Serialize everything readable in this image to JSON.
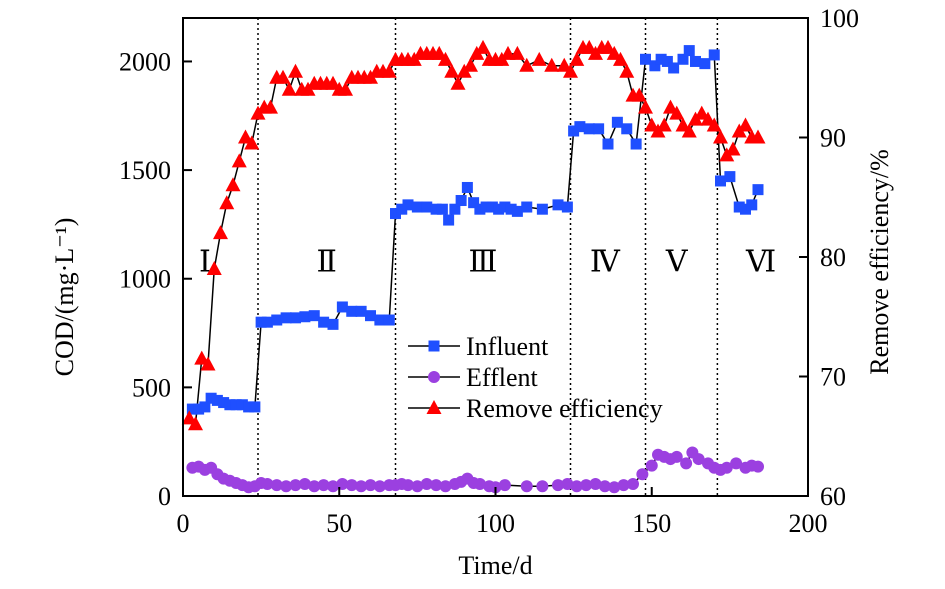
{
  "chart_data": {
    "type": "line",
    "xlabel": "Time/d",
    "ylabel": "COD/(mg·L⁻¹)",
    "y2label": "Remove efficiency/%",
    "xlim": [
      0,
      200
    ],
    "ylim": [
      0,
      2200
    ],
    "y2lim": [
      60,
      100
    ],
    "xticks": [
      "0",
      "50",
      "100",
      "150",
      "200"
    ],
    "yticks": [
      "0",
      "500",
      "1000",
      "1500",
      "2000"
    ],
    "y2ticks": [
      "60",
      "70",
      "80",
      "90",
      "100"
    ],
    "phase_boundaries": [
      24,
      68,
      124,
      148,
      171
    ],
    "phases": [
      {
        "label": "Ⅰ",
        "x": 7,
        "y": 1080
      },
      {
        "label": "Ⅱ",
        "x": 46,
        "y": 1080
      },
      {
        "label": "Ⅲ",
        "x": 96,
        "y": 1080
      },
      {
        "label": "Ⅳ",
        "x": 135,
        "y": 1080
      },
      {
        "label": "Ⅴ",
        "x": 158,
        "y": 1080
      },
      {
        "label": "Ⅵ",
        "x": 185,
        "y": 1080
      }
    ],
    "legend": [
      "Influent",
      "Efflent",
      "Remove efficiency"
    ],
    "legend_position": "middle",
    "grid": false,
    "colors": {
      "influent": "#1f4fff",
      "effluent": "#9b40e0",
      "efficiency": "#ff0000",
      "line": "#000000"
    },
    "series": [
      {
        "name": "Influent",
        "axis": "left",
        "marker": "square",
        "x": [
          3,
          5,
          7,
          9,
          11,
          13,
          15,
          17,
          19,
          21,
          23,
          25,
          27,
          30,
          33,
          36,
          39,
          42,
          45,
          48,
          51,
          54,
          57,
          60,
          63,
          66,
          68,
          70,
          72,
          75,
          78,
          81,
          83,
          85,
          87,
          89,
          91,
          93,
          95,
          97,
          99,
          101,
          103,
          105,
          107,
          110,
          115,
          120,
          123,
          125,
          127,
          130,
          133,
          136,
          139,
          142,
          145,
          148,
          151,
          153,
          155,
          157,
          160,
          162,
          164,
          167,
          170,
          172,
          175,
          178,
          180,
          182,
          184
        ],
        "values": [
          400,
          400,
          410,
          450,
          440,
          430,
          420,
          420,
          420,
          410,
          410,
          800,
          800,
          810,
          820,
          820,
          825,
          830,
          800,
          790,
          870,
          850,
          850,
          830,
          810,
          810,
          1300,
          1320,
          1340,
          1330,
          1330,
          1320,
          1320,
          1270,
          1320,
          1360,
          1420,
          1350,
          1320,
          1330,
          1330,
          1320,
          1330,
          1320,
          1310,
          1330,
          1320,
          1340,
          1330,
          1680,
          1700,
          1690,
          1690,
          1620,
          1720,
          1690,
          1620,
          2010,
          1980,
          2010,
          2000,
          1970,
          2010,
          2050,
          2000,
          1990,
          2030,
          1450,
          1470,
          1330,
          1320,
          1340,
          1410
        ]
      },
      {
        "name": "Efflent",
        "axis": "left",
        "marker": "circle",
        "x": [
          3,
          5,
          7,
          9,
          11,
          13,
          15,
          17,
          19,
          21,
          23,
          25,
          27,
          30,
          33,
          36,
          39,
          42,
          45,
          48,
          51,
          54,
          57,
          60,
          63,
          66,
          68,
          70,
          72,
          75,
          78,
          81,
          84,
          87,
          89,
          91,
          93,
          95,
          98,
          100,
          103,
          110,
          115,
          120,
          123,
          126,
          129,
          132,
          135,
          138,
          141,
          144,
          147,
          150,
          152,
          154,
          156,
          158,
          161,
          163,
          165,
          168,
          170,
          172,
          174,
          177,
          180,
          182,
          184
        ],
        "values": [
          130,
          135,
          120,
          130,
          100,
          80,
          70,
          60,
          50,
          40,
          45,
          60,
          55,
          50,
          45,
          50,
          55,
          45,
          50,
          45,
          55,
          50,
          45,
          50,
          45,
          50,
          50,
          55,
          50,
          45,
          55,
          50,
          45,
          55,
          65,
          80,
          60,
          55,
          45,
          40,
          50,
          45,
          45,
          50,
          55,
          45,
          50,
          55,
          45,
          40,
          50,
          55,
          100,
          140,
          190,
          180,
          170,
          180,
          150,
          200,
          170,
          150,
          130,
          120,
          130,
          150,
          130,
          140,
          135
        ]
      },
      {
        "name": "Remove efficiency",
        "axis": "right",
        "marker": "triangle",
        "x": [
          2,
          4,
          6,
          8,
          10,
          12,
          14,
          16,
          18,
          20,
          22,
          24,
          26,
          28,
          30,
          32,
          34,
          36,
          38,
          40,
          42,
          44,
          46,
          48,
          50,
          52,
          54,
          56,
          58,
          60,
          62,
          64,
          66,
          68,
          70,
          72,
          74,
          76,
          78,
          80,
          82,
          84,
          86,
          88,
          90,
          92,
          94,
          96,
          98,
          100,
          102,
          104,
          107,
          110,
          114,
          118,
          122,
          124,
          126,
          128,
          130,
          132,
          134,
          136,
          138,
          140,
          142,
          144,
          146,
          148,
          150,
          152,
          154,
          156,
          158,
          160,
          162,
          164,
          166,
          168,
          170,
          172,
          174,
          176,
          178,
          180,
          182,
          184
        ],
        "values": [
          66.5,
          66,
          71.5,
          71,
          79,
          82,
          84.5,
          86,
          88,
          90,
          89.5,
          92,
          92.5,
          92.5,
          95,
          95,
          94,
          95.5,
          94,
          94,
          94.5,
          94.5,
          94.5,
          94.5,
          94,
          94,
          95,
          95,
          95,
          95,
          95.5,
          95.5,
          95.5,
          96.5,
          96.5,
          96.5,
          96.5,
          97,
          97,
          97,
          97,
          96.5,
          95.5,
          94.5,
          95.5,
          96,
          97,
          97.5,
          96.5,
          96.5,
          96.5,
          97,
          97,
          96,
          96.5,
          96,
          96,
          95.5,
          96.5,
          97.5,
          97.5,
          97,
          97.5,
          97.5,
          97,
          96.5,
          95.5,
          93.5,
          93.5,
          92.5,
          91,
          90.5,
          91,
          92.5,
          92,
          91,
          90.5,
          91.5,
          92,
          91.5,
          91,
          90,
          88.5,
          89,
          90.5,
          91,
          90,
          90
        ]
      }
    ]
  }
}
